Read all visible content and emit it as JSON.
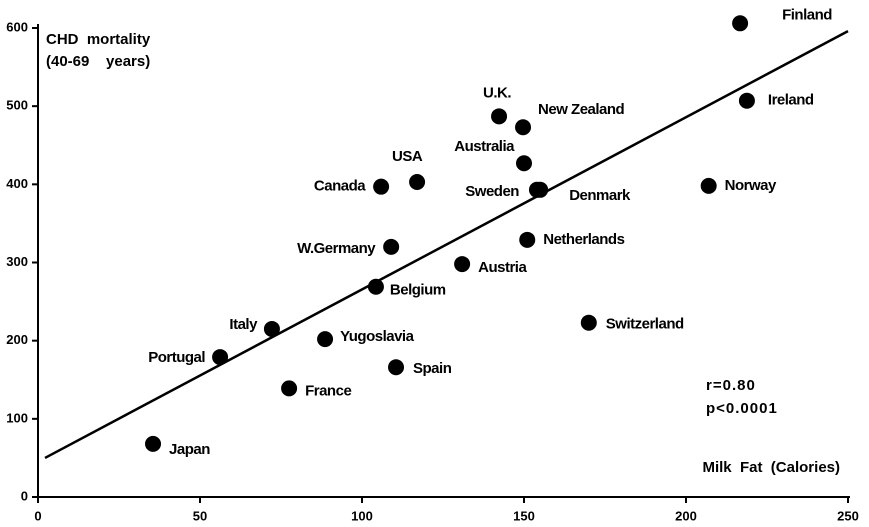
{
  "chart_data": {
    "type": "scatter",
    "ylabel": [
      "CHD  mortality",
      "(40-69    years)"
    ],
    "xlabel": "Milk  Fat  (Calories)",
    "annotations": [
      "r=0.80",
      "p<0.0001"
    ],
    "labels": [
      "Finland",
      "Ireland",
      "Norway",
      "U.K.",
      "New Zealand",
      "Australia",
      "USA",
      "Canada",
      "Sweden",
      "Denmark",
      "Netherlands",
      "W.Germany",
      "Austria",
      "Belgium",
      "Switzerland",
      "Italy",
      "Yugoslavia",
      "Portugal",
      "Spain",
      "France",
      "Japan"
    ],
    "x": [
      216.7,
      218.8,
      207,
      142.3,
      149.7,
      150,
      117,
      105.9,
      154,
      155,
      151,
      109,
      130.9,
      104.3,
      170,
      72.2,
      88.6,
      56.2,
      110.5,
      77.5,
      35.5
    ],
    "values": [
      606,
      507,
      398,
      487,
      473,
      427,
      403,
      397,
      393,
      393,
      329,
      320,
      298,
      269,
      223,
      215,
      202,
      179,
      166,
      139,
      68
    ],
    "color": "#000000",
    "trendline": {
      "x": [
        0,
        250
      ],
      "y": [
        50,
        596
      ]
    },
    "xlim": [
      0,
      250
    ],
    "xticks": [
      0,
      50,
      100,
      150,
      200,
      250
    ],
    "ylim": [
      0,
      600
    ],
    "yticks": [
      0,
      100,
      200,
      300,
      400,
      500,
      600
    ]
  }
}
